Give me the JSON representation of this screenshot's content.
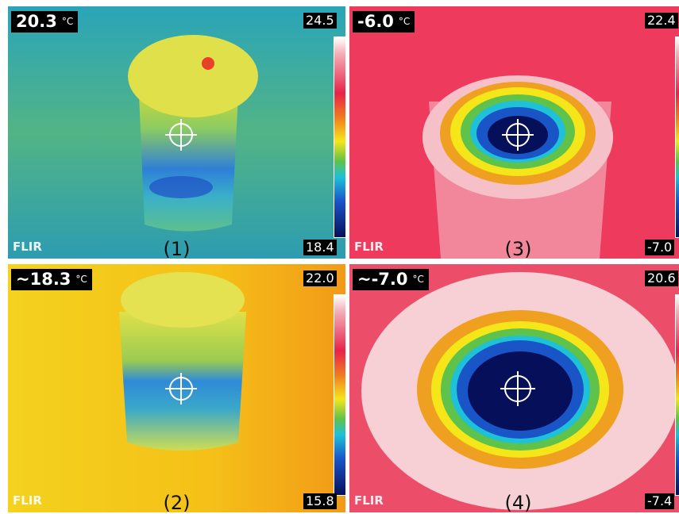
{
  "panels": [
    {
      "reading": "20.3",
      "unit": "°C",
      "scale_max": "24.5",
      "scale_min": "18.4",
      "logo": "FLIR",
      "label": "(1)"
    },
    {
      "reading": "~18.3",
      "unit": "°C",
      "scale_max": "22.0",
      "scale_min": "15.8",
      "logo": "FLIR",
      "label": "(2)"
    },
    {
      "reading": "-6.0",
      "unit": "°C",
      "scale_max": "22.4",
      "scale_min": "-7.0",
      "logo": "FLIR",
      "label": "(3)"
    },
    {
      "reading": "~-7.0",
      "unit": "°C",
      "scale_max": "20.6",
      "scale_min": "-7.4",
      "logo": "FLIR",
      "label": "(4)"
    }
  ]
}
